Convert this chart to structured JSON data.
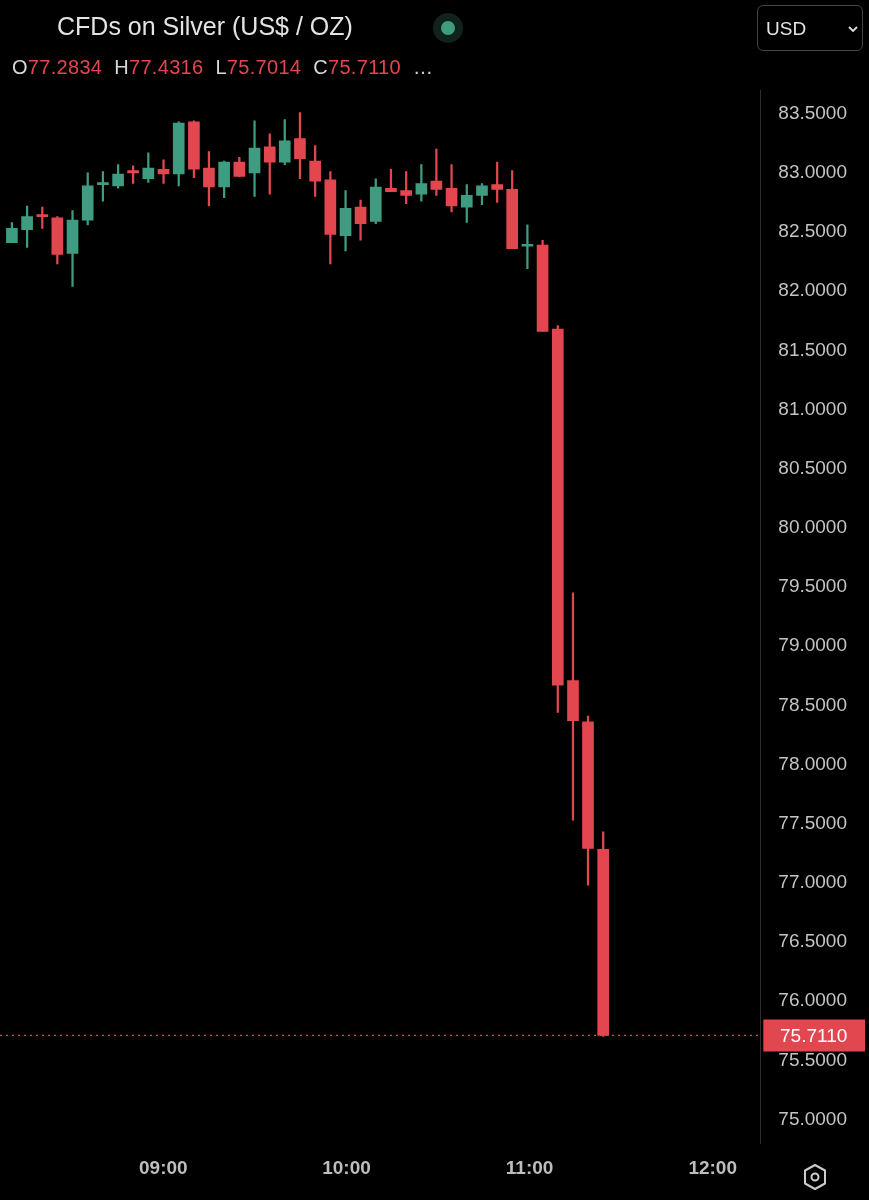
{
  "chart_data": {
    "type": "candlestick",
    "title": "CFDs on Silver (US$ / OZ)",
    "subtitle": "O77.2834 H77.4316 L75.7014 C75.7110 …",
    "annotations": [
      "USD"
    ],
    "x": [
      8.173,
      8.256,
      8.339,
      8.421,
      8.504,
      8.587,
      8.67,
      8.753,
      8.835,
      8.918,
      9.001,
      9.084,
      9.167,
      9.249,
      9.332,
      9.415,
      9.498,
      9.581,
      9.663,
      9.746,
      9.829,
      9.912,
      9.995,
      10.077,
      10.16,
      10.243,
      10.326,
      10.409,
      10.491,
      10.574,
      10.657,
      10.74,
      10.823,
      10.905,
      10.988,
      11.071,
      11.154,
      11.237,
      11.319,
      11.402
    ],
    "ohlc": [
      [
        82.41,
        82.58,
        82.41,
        82.53
      ],
      [
        82.52,
        82.72,
        82.37,
        82.63
      ],
      [
        82.64,
        82.71,
        82.53,
        82.63
      ],
      [
        82.62,
        82.63,
        82.23,
        82.31
      ],
      [
        82.32,
        82.68,
        82.04,
        82.6
      ],
      [
        82.6,
        83.0,
        82.56,
        82.89
      ],
      [
        82.9,
        83.01,
        82.76,
        82.91
      ],
      [
        82.89,
        83.07,
        82.87,
        82.99
      ],
      [
        83.02,
        83.06,
        82.91,
        83.0
      ],
      [
        82.95,
        83.17,
        82.92,
        83.04
      ],
      [
        83.03,
        83.11,
        82.91,
        82.99
      ],
      [
        82.99,
        83.43,
        82.89,
        83.42
      ],
      [
        83.43,
        83.44,
        82.96,
        83.03
      ],
      [
        83.04,
        83.18,
        82.72,
        82.88
      ],
      [
        82.88,
        83.1,
        82.79,
        83.09
      ],
      [
        83.09,
        83.13,
        82.97,
        82.97
      ],
      [
        83.0,
        83.44,
        82.8,
        83.21
      ],
      [
        83.22,
        83.33,
        82.82,
        83.09
      ],
      [
        83.09,
        83.45,
        83.07,
        83.27
      ],
      [
        83.29,
        83.51,
        82.95,
        83.12
      ],
      [
        83.1,
        83.23,
        82.8,
        82.93
      ],
      [
        82.94,
        83.01,
        82.23,
        82.48
      ],
      [
        82.47,
        82.85,
        82.34,
        82.7
      ],
      [
        82.71,
        82.77,
        82.43,
        82.57
      ],
      [
        82.59,
        82.95,
        82.57,
        82.88
      ],
      [
        82.87,
        83.03,
        82.84,
        82.84
      ],
      [
        82.85,
        83.01,
        82.74,
        82.81
      ],
      [
        82.82,
        83.07,
        82.76,
        82.91
      ],
      [
        82.93,
        83.2,
        82.81,
        82.86
      ],
      [
        82.87,
        83.07,
        82.67,
        82.72
      ],
      [
        82.71,
        82.9,
        82.58,
        82.81
      ],
      [
        82.81,
        82.91,
        82.73,
        82.89
      ],
      [
        82.9,
        83.09,
        82.75,
        82.86
      ],
      [
        82.86,
        83.02,
        82.36,
        82.36
      ],
      [
        82.38,
        82.56,
        82.19,
        82.39
      ],
      [
        82.39,
        82.43,
        81.66,
        81.66
      ],
      [
        81.68,
        81.71,
        78.44,
        78.67
      ],
      [
        78.71,
        79.45,
        77.53,
        78.37
      ],
      [
        78.36,
        78.41,
        76.98,
        77.29
      ],
      [
        77.2834,
        77.4316,
        75.7014,
        75.711
      ]
    ],
    "colors": [
      "#3f9c81",
      "#3f9c81",
      "#e2474f",
      "#e2474f",
      "#3f9c81",
      "#3f9c81",
      "#3f9c81",
      "#3f9c81",
      "#e2474f",
      "#3f9c81",
      "#e2474f",
      "#3f9c81",
      "#e2474f",
      "#e2474f",
      "#3f9c81",
      "#e2474f",
      "#3f9c81",
      "#e2474f",
      "#3f9c81",
      "#e2474f",
      "#e2474f",
      "#e2474f",
      "#3f9c81",
      "#e2474f",
      "#3f9c81",
      "#e2474f",
      "#e2474f",
      "#3f9c81",
      "#e2474f",
      "#e2474f",
      "#3f9c81",
      "#3f9c81",
      "#e2474f",
      "#e2474f",
      "#3f9c81",
      "#e2474f",
      "#e2474f",
      "#e2474f",
      "#e2474f",
      "#e2474f"
    ],
    "xlim": [
      8.108,
      12.26
    ],
    "xticks": [
      {
        "value": 9,
        "label": "09:00"
      },
      {
        "value": 10,
        "label": "10:00"
      },
      {
        "value": 11,
        "label": "11:00"
      },
      {
        "value": 12,
        "label": "12:00"
      }
    ],
    "ylim": [
      74.8,
      83.7
    ],
    "yticks": [
      {
        "value": 75,
        "label": "75.0000"
      },
      {
        "value": 75.5,
        "label": "75.5000"
      },
      {
        "value": 76,
        "label": "76.0000"
      },
      {
        "value": 76.5,
        "label": "76.5000"
      },
      {
        "value": 77,
        "label": "77.0000"
      },
      {
        "value": 77.5,
        "label": "77.5000"
      },
      {
        "value": 78,
        "label": "78.0000"
      },
      {
        "value": 78.5,
        "label": "78.5000"
      },
      {
        "value": 79,
        "label": "79.0000"
      },
      {
        "value": 79.5,
        "label": "79.5000"
      },
      {
        "value": 80,
        "label": "80.0000"
      },
      {
        "value": 80.5,
        "label": "80.5000"
      },
      {
        "value": 81,
        "label": "81.0000"
      },
      {
        "value": 81.5,
        "label": "81.5000"
      },
      {
        "value": 82,
        "label": "82.0000"
      },
      {
        "value": 82.5,
        "label": "82.5000"
      },
      {
        "value": 83,
        "label": "83.0000"
      },
      {
        "value": 83.5,
        "label": "83.5000"
      }
    ],
    "ref_lines": [
      {
        "axis": "y",
        "value": 75.711,
        "label": "75.7110",
        "color": "#e2474f",
        "line_style": "dotted"
      }
    ]
  }
}
